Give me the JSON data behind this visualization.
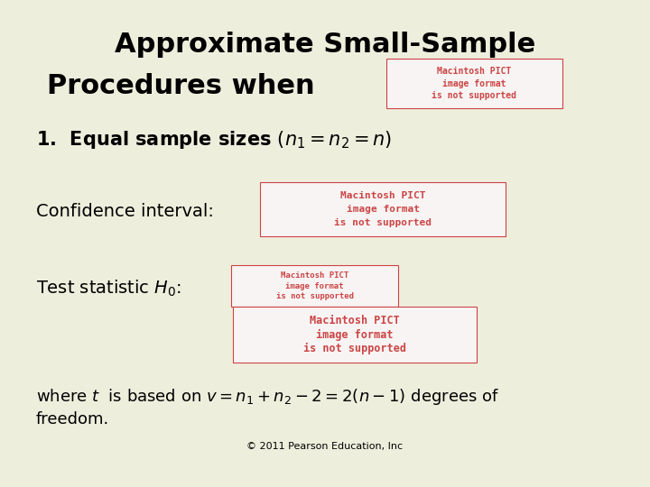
{
  "background_color": "#eeeedd",
  "title_line1": "Approximate Small-Sample",
  "title_line2": "Procedures when",
  "title_fontsize": 22,
  "title_fontstyle": "bold",
  "title_color": "#000000",
  "item1_prefix": "1.  Equal sample sizes ",
  "item1_math": "$(n_1 = n_2 = n)$",
  "item1_fontsize": 15,
  "conf_label": "Confidence interval:",
  "conf_fontsize": 14,
  "test_label": "Test statistic ",
  "test_math": "$H_0$:",
  "test_fontsize": 14,
  "footer_line1": "where $t$  is based on $v = n_1 + n_2 - 2 = 2(n - 1)$ degrees of",
  "footer_line2": "freedom.",
  "footer_fontsize": 13,
  "copyright": "© 2011 Pearson Education, Inc",
  "copyright_fontsize": 8,
  "pict_color": "#cc4444",
  "pict_bg": "#f8f4f4",
  "pict_text1": "Macintosh PICT",
  "pict_text2": "image format",
  "pict_text3": "is not supported"
}
